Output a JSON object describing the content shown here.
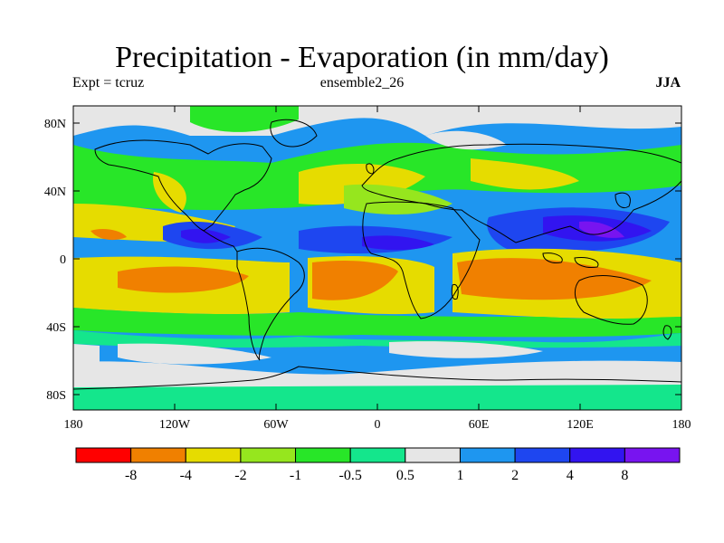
{
  "title": "Precipitation - Evaporation (in mm/day)",
  "subtitle_left": "Expt = tcruz",
  "subtitle_center": "ensemble2_26",
  "subtitle_right": "JJA",
  "map": {
    "lat_ticks": [
      "80N",
      "40N",
      "0",
      "40S",
      "80S"
    ],
    "lon_ticks": [
      "180",
      "120W",
      "60W",
      "0",
      "60E",
      "120E",
      "180"
    ]
  },
  "colorbar": {
    "colors": [
      "#ff0000",
      "#f08000",
      "#e6dc00",
      "#96e61e",
      "#28e628",
      "#14e68c",
      "#e6e6e6",
      "#1e96f0",
      "#1e46f0",
      "#3214f0",
      "#7814f0"
    ],
    "labels": [
      "-8",
      "-4",
      "-2",
      "-1",
      "-0.5",
      "0.5",
      "1",
      "2",
      "4",
      "8"
    ]
  }
}
